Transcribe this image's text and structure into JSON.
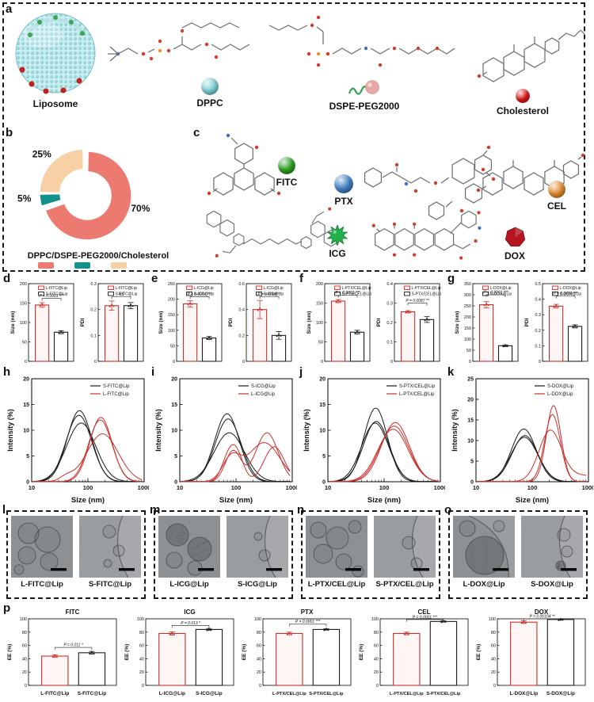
{
  "panels": {
    "a": "a",
    "b": "b",
    "c": "c",
    "d": "d",
    "e": "e",
    "f": "f",
    "g": "g",
    "h": "h",
    "i": "i",
    "j": "j",
    "k": "k",
    "l": "l",
    "m": "m",
    "n": "n",
    "o": "o",
    "p": "p"
  },
  "panel_a": {
    "liposome_label": "Liposome",
    "components": [
      {
        "label": "DPPC",
        "color": "#7ecfd6"
      },
      {
        "label": "DSPE-PEG2000",
        "color": "#e8a8a4"
      },
      {
        "label": "Cholesterol",
        "color": "#e0191b"
      }
    ]
  },
  "panel_b": {
    "title": "DPPC/DSPE-PEG2000/Cholesterol",
    "legend_colors": [
      "#ec7a71",
      "#12918c",
      "#f8d0a6"
    ]
  },
  "panel_c": {
    "molecules": [
      {
        "label": "FITC",
        "color": "#2f9e23"
      },
      {
        "label": "PTX",
        "color": "#3f7fc1"
      },
      {
        "label": "CEL",
        "color": "#e08a30"
      },
      {
        "label": "ICG",
        "color": "#21b24b"
      },
      {
        "label": "DOX",
        "color": "#b51420"
      }
    ]
  },
  "tem_panels": [
    {
      "left": "L-FITC@Lip",
      "right": "S-FITC@Lip"
    },
    {
      "left": "L-ICG@Lip",
      "right": "S-ICG@Lip"
    },
    {
      "left": "L-PTX/CEL@Lip",
      "right": "S-PTX/CEL@Lip"
    },
    {
      "left": "L-DOX@Lip",
      "right": "S-DOX@Lip"
    }
  ],
  "chart_data": [
    {
      "id": "donut_b",
      "type": "pie",
      "values": [
        70,
        5,
        25
      ],
      "labels": [
        "70%",
        "5%",
        "25%"
      ],
      "colors": [
        "#ec7a71",
        "#12918c",
        "#f8d0a6"
      ],
      "label_angles": [
        15,
        175,
        223
      ],
      "label_r": [
        1.32,
        1.35,
        1.3
      ]
    },
    {
      "id": "d_size",
      "type": "bar",
      "ylabel": "Size (nm)",
      "categories": [
        "L-FITC@Lip",
        "S-FITC@Lip"
      ],
      "values": [
        145,
        75
      ],
      "errors": [
        6,
        4
      ],
      "ymax": 200,
      "yticks": [
        0,
        50,
        100,
        150,
        200
      ],
      "p": "P < 0.0001 ***",
      "bracket": 162,
      "colors": [
        "#c9302c",
        "#1a1a1a"
      ],
      "legend": true
    },
    {
      "id": "d_pdi",
      "type": "bar",
      "ylabel": "PDI",
      "categories": [
        "L-FITC@Lip",
        "S-FITC@Lip"
      ],
      "values": [
        0.215,
        0.215
      ],
      "errors": [
        0.018,
        0.012
      ],
      "ymax": 0.3,
      "yticks": [
        0,
        0.1,
        0.2,
        0.3
      ],
      "p": "NS",
      "bracket": 0.25,
      "colors": [
        "#c9302c",
        "#1a1a1a"
      ],
      "legend": true
    },
    {
      "id": "e_size",
      "type": "bar",
      "ylabel": "Size (nm)",
      "categories": [
        "L-ICG@Lip",
        "S-ICG@Lip"
      ],
      "values": [
        185,
        75
      ],
      "errors": [
        10,
        5
      ],
      "ymax": 250,
      "yticks": [
        0,
        50,
        100,
        150,
        200,
        250
      ],
      "p": "P < 0.0001 ***",
      "bracket": 208,
      "colors": [
        "#c9302c",
        "#1a1a1a"
      ],
      "legend": true
    },
    {
      "id": "e_pdi",
      "type": "bar",
      "ylabel": "PDI",
      "categories": [
        "L-ICG@Lip",
        "S-ICG@Lip"
      ],
      "values": [
        0.4,
        0.2
      ],
      "errors": [
        0.07,
        0.03
      ],
      "ymax": 0.6,
      "yticks": [
        0,
        0.2,
        0.4,
        0.6
      ],
      "p": "P = 0.0088 **",
      "bracket": 0.5,
      "colors": [
        "#c9302c",
        "#1a1a1a"
      ],
      "legend": true
    },
    {
      "id": "f_size",
      "type": "bar",
      "ylabel": "Size (nm)",
      "categories": [
        "L-PTX/CEL@Lip",
        "S-PTX/CEL@Lip"
      ],
      "values": [
        155,
        75
      ],
      "errors": [
        4,
        5
      ],
      "ymax": 200,
      "yticks": [
        0,
        50,
        100,
        150,
        200
      ],
      "p": "P < 0.0001 ***",
      "bracket": 170,
      "colors": [
        "#c9302c",
        "#1a1a1a"
      ],
      "legend": true
    },
    {
      "id": "f_pdi",
      "type": "bar",
      "ylabel": "PDI",
      "categories": [
        "L-PTX/CEL@Lip",
        "S-PTX/CEL@Lip"
      ],
      "values": [
        0.255,
        0.215
      ],
      "errors": [
        0.006,
        0.015
      ],
      "ymax": 0.4,
      "yticks": [
        0,
        0.1,
        0.2,
        0.3,
        0.4
      ],
      "p": "P = 0.0087 **",
      "bracket": 0.3,
      "colors": [
        "#c9302c",
        "#1a1a1a"
      ],
      "legend": true
    },
    {
      "id": "g_size",
      "type": "bar",
      "ylabel": "Size (nm)",
      "categories": [
        "L-DOX@Lip",
        "S-DOX@Lip"
      ],
      "values": [
        255,
        70
      ],
      "errors": [
        14,
        4
      ],
      "ymax": 350,
      "yticks": [
        0,
        50,
        100,
        150,
        200,
        250,
        300,
        350
      ],
      "p": "P < 0.0001 ***",
      "bracket": 300,
      "colors": [
        "#c9302c",
        "#1a1a1a"
      ],
      "legend": true
    },
    {
      "id": "g_pdi",
      "type": "bar",
      "ylabel": "PDI",
      "categories": [
        "L-DOX@Lip",
        "S-DOX@Lip"
      ],
      "values": [
        0.355,
        0.225
      ],
      "errors": [
        0.012,
        0.01
      ],
      "ymax": 0.5,
      "yticks": [
        0,
        0.1,
        0.2,
        0.3,
        0.4,
        0.5
      ],
      "p": "P = 0.0003 ***",
      "bracket": 0.42,
      "colors": [
        "#c9302c",
        "#1a1a1a"
      ],
      "legend": true
    },
    {
      "id": "h_dls",
      "type": "dls",
      "xlabel": "Size (nm)",
      "ylabel": "Intensity (%)",
      "ymax": 20,
      "yticks": [
        0,
        5,
        10,
        15,
        20
      ],
      "series": [
        {
          "name": "S-FITC@Lip",
          "color": "#1a1a1a",
          "curves": [
            [
              [
                1.85,
                13.8,
                0.22
              ]
            ],
            [
              [
                1.84,
                12.9,
                0.23
              ]
            ],
            [
              [
                1.88,
                11.4,
                0.26
              ]
            ]
          ]
        },
        {
          "name": "L-FITC@Lip",
          "color": "#c9302c",
          "curves": [
            [
              [
                2.23,
                12.5,
                0.2
              ]
            ],
            [
              [
                2.22,
                12.0,
                0.21
              ]
            ],
            [
              [
                2.26,
                9.3,
                0.28
              ],
              [
                1.62,
                0.9,
                0.12
              ]
            ]
          ]
        }
      ]
    },
    {
      "id": "i_dls",
      "type": "dls",
      "xlabel": "Size (nm)",
      "ylabel": "Intensity (%)",
      "ymax": 20,
      "yticks": [
        0,
        5,
        10,
        15,
        20
      ],
      "series": [
        {
          "name": "S-ICG@Lip",
          "color": "#1a1a1a",
          "curves": [
            [
              [
                1.84,
                13.2,
                0.22
              ]
            ],
            [
              [
                1.86,
                12.2,
                0.23
              ]
            ],
            [
              [
                1.88,
                9.5,
                0.27
              ]
            ]
          ]
        },
        {
          "name": "L-ICG@Lip",
          "color": "#c9302c",
          "curves": [
            [
              [
                1.95,
                6.0,
                0.14
              ],
              [
                2.55,
                9.5,
                0.2
              ]
            ],
            [
              [
                1.92,
                4.6,
                0.16
              ],
              [
                2.5,
                7.6,
                0.28
              ]
            ],
            [
              [
                1.86,
                4.2,
                0.12
              ],
              [
                2.02,
                4.8,
                0.12
              ],
              [
                2.68,
                6.8,
                0.18
              ]
            ]
          ]
        }
      ]
    },
    {
      "id": "j_dls",
      "type": "dls",
      "xlabel": "Size (nm)",
      "ylabel": "Intensity (%)",
      "ymax": 20,
      "yticks": [
        0,
        5,
        10,
        15,
        20
      ],
      "series": [
        {
          "name": "S-PTX/CEL@Lip",
          "color": "#1a1a1a",
          "curves": [
            [
              [
                1.85,
                14.3,
                0.21
              ]
            ],
            [
              [
                1.86,
                11.7,
                0.23
              ]
            ],
            [
              [
                1.84,
                11.4,
                0.24
              ]
            ]
          ]
        },
        {
          "name": "L-PTX/CEL@Lip",
          "color": "#c9302c",
          "curves": [
            [
              [
                2.2,
                11.5,
                0.25
              ]
            ],
            [
              [
                2.18,
                10.8,
                0.26
              ]
            ],
            [
              [
                2.16,
                10.2,
                0.27
              ]
            ]
          ]
        }
      ]
    },
    {
      "id": "k_dls",
      "type": "dls",
      "xlabel": "Size (nm)",
      "ylabel": "Intensity (%)",
      "ymax": 25,
      "yticks": [
        0,
        5,
        10,
        15,
        20,
        25
      ],
      "series": [
        {
          "name": "S-DOX@Lip",
          "color": "#1a1a1a",
          "curves": [
            [
              [
                1.85,
                12.8,
                0.22
              ]
            ],
            [
              [
                1.87,
                11.2,
                0.23
              ]
            ],
            [
              [
                1.86,
                10.8,
                0.24
              ]
            ]
          ]
        },
        {
          "name": "L-DOX@Lip",
          "color": "#c9302c",
          "curves": [
            [
              [
                2.38,
                18.5,
                0.13
              ]
            ],
            [
              [
                2.36,
                16.3,
                0.14
              ]
            ],
            [
              [
                2.32,
                12.3,
                0.2
              ],
              [
                2.9,
                1.5,
                0.3
              ]
            ]
          ]
        }
      ]
    },
    {
      "id": "p_fitc",
      "type": "bar",
      "title": "FITC",
      "ylabel": "EE (%)",
      "categories": [
        "L-FITC@Lip",
        "S-FITC@Lip"
      ],
      "values": [
        44,
        49
      ],
      "errors": [
        2,
        2
      ],
      "ymax": 100,
      "yticks": [
        0,
        20,
        40,
        60,
        80,
        100
      ],
      "p": "P = 0.011 *",
      "bracket": 57,
      "colors": [
        "#c9302c",
        "#1a1a1a"
      ],
      "xlabels": true,
      "ml": 28,
      "xfs": 6.4
    },
    {
      "id": "p_icg",
      "type": "bar",
      "title": "ICG",
      "ylabel": "EE (%)",
      "categories": [
        "L-ICG@Lip",
        "S-ICG@Lip"
      ],
      "values": [
        78,
        84
      ],
      "errors": [
        2.5,
        1.5
      ],
      "ymax": 100,
      "yticks": [
        0,
        20,
        40,
        60,
        80,
        100
      ],
      "p": "P = 0.013 *",
      "bracket": 90,
      "colors": [
        "#c9302c",
        "#1a1a1a"
      ],
      "xlabels": true,
      "ml": 28,
      "xfs": 6.4
    },
    {
      "id": "p_ptx",
      "type": "bar",
      "title": "PTX",
      "ylabel": "EE (%)",
      "categories": [
        "L-PTX/CEL@Lip",
        "S-PTX/CEL@Lip"
      ],
      "values": [
        78,
        84
      ],
      "errors": [
        2,
        1
      ],
      "ymax": 100,
      "yticks": [
        0,
        20,
        40,
        60,
        80,
        100
      ],
      "p": "P = 0.0001 ***",
      "bracket": 92,
      "colors": [
        "#c9302c",
        "#1a1a1a"
      ],
      "xlabels": true,
      "ml": 28,
      "xfs": 5.6
    },
    {
      "id": "p_cel",
      "type": "bar",
      "title": "CEL",
      "ylabel": "EE (%)",
      "categories": [
        "L-PTX/CEL@Lip",
        "S-PTX/CEL@Lip"
      ],
      "values": [
        78,
        96
      ],
      "errors": [
        2,
        1
      ],
      "ymax": 100,
      "yticks": [
        0,
        20,
        40,
        60,
        80,
        100
      ],
      "p": "P = 0.0001 ***",
      "bracket": 99,
      "colors": [
        "#c9302c",
        "#1a1a1a"
      ],
      "xlabels": true,
      "ml": 28,
      "xfs": 5.6
    },
    {
      "id": "p_dox",
      "type": "bar",
      "title": "DOX",
      "ylabel": "EE (%)",
      "categories": [
        "L-DOX@Lip",
        "S-DOX@Lip"
      ],
      "values": [
        95,
        99
      ],
      "errors": [
        2,
        1
      ],
      "ymax": 100,
      "yticks": [
        0,
        20,
        40,
        60,
        80,
        100
      ],
      "p": "P = 0.00104 **",
      "bracket": 100,
      "colors": [
        "#c9302c",
        "#1a1a1a"
      ],
      "xlabels": true,
      "ml": 28,
      "xfs": 6.4
    }
  ]
}
